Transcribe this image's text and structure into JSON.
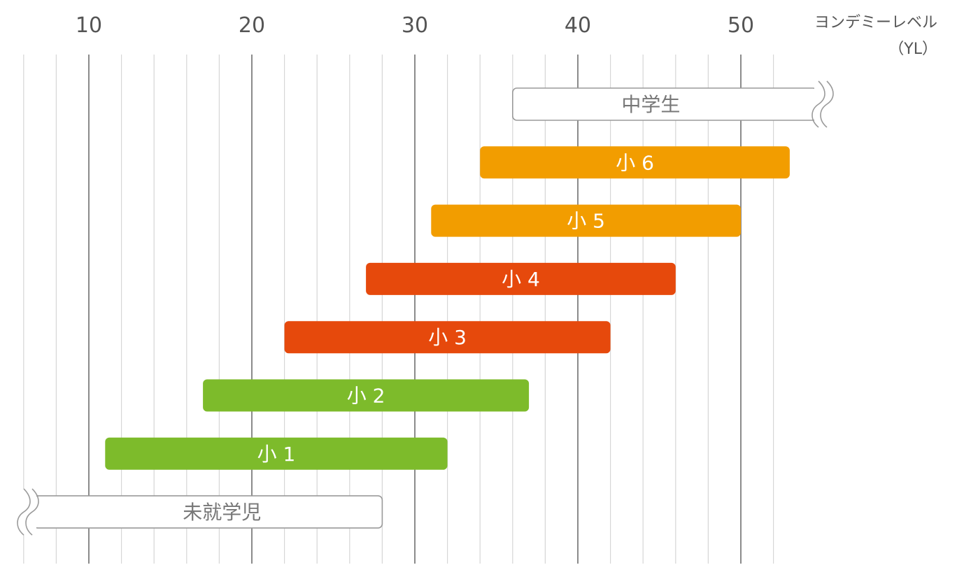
{
  "chart_data": {
    "type": "bar",
    "orientation": "horizontal-range",
    "xlabel": "ヨンデミーレベル",
    "xlabel_unit": "（YL）",
    "xlim": [
      6,
      54
    ],
    "x_ticks": [
      10,
      20,
      30,
      40,
      50
    ],
    "grid": true,
    "series": [
      {
        "name": "未就学児",
        "start": 6,
        "end": 28,
        "color": "#ffffff",
        "text_color": "#777777",
        "outlined": true,
        "open_start": true
      },
      {
        "name": "小 1",
        "start": 11,
        "end": 32,
        "color": "#7dbb2b",
        "text_color": "#ffffff"
      },
      {
        "name": "小 2",
        "start": 17,
        "end": 37,
        "color": "#7dbb2b",
        "text_color": "#ffffff"
      },
      {
        "name": "小 3",
        "start": 22,
        "end": 42,
        "color": "#e6490c",
        "text_color": "#ffffff"
      },
      {
        "name": "小 4",
        "start": 27,
        "end": 46,
        "color": "#e6490c",
        "text_color": "#ffffff"
      },
      {
        "name": "小 5",
        "start": 31,
        "end": 50,
        "color": "#f29d00",
        "text_color": "#ffffff"
      },
      {
        "name": "小 6",
        "start": 34,
        "end": 53,
        "color": "#f29d00",
        "text_color": "#ffffff"
      },
      {
        "name": "中学生",
        "start": 36,
        "end": 54,
        "color": "#ffffff",
        "text_color": "#777777",
        "outlined": true,
        "open_end": true
      }
    ]
  }
}
